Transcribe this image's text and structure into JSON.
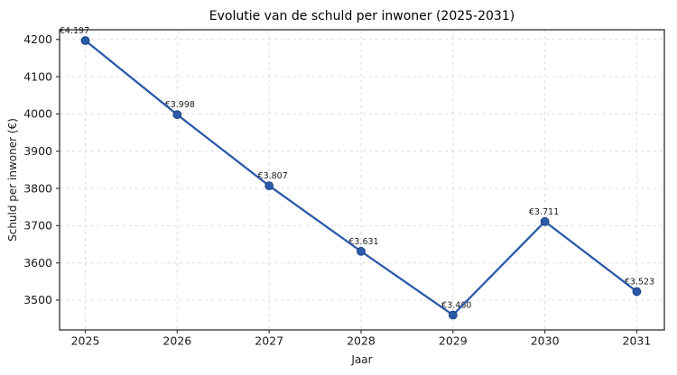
{
  "chart_data": {
    "type": "line",
    "title": "Evolutie van de schuld per inwoner (2025-2031)",
    "xlabel": "Jaar",
    "ylabel": "Schuld per inwoner (€)",
    "x": [
      2025,
      2026,
      2027,
      2028,
      2029,
      2030,
      2031
    ],
    "values": [
      4197,
      3998,
      3807,
      3631,
      3460,
      3711,
      3523
    ],
    "point_labels": [
      "€4.197",
      "€3.998",
      "€3.807",
      "€3.631",
      "€3.460",
      "€3.711",
      "€3.523"
    ],
    "xtick_labels": [
      "2025",
      "2026",
      "2027",
      "2028",
      "2029",
      "2030",
      "2031"
    ],
    "ytick_values": [
      3500,
      3600,
      3700,
      3800,
      3900,
      4000,
      4100,
      4200
    ],
    "ytick_labels": [
      "3500",
      "3600",
      "3700",
      "3800",
      "3900",
      "4000",
      "4100",
      "4200"
    ],
    "xlim": [
      2024.72,
      2031.3
    ],
    "ylim": [
      3420,
      4226
    ],
    "grid": true,
    "grid_style": "dashed",
    "legend": "none",
    "label_dx": [
      -12,
      3,
      4,
      3,
      4,
      -1,
      3
    ],
    "line_color": "#2b5aa8",
    "marker_edge_color": "#1d4382",
    "grid_color": "#dcdcdc",
    "spine_color": "#3c3c3c",
    "text_color": "#1a1a1a",
    "background_color": "#ffffff"
  }
}
